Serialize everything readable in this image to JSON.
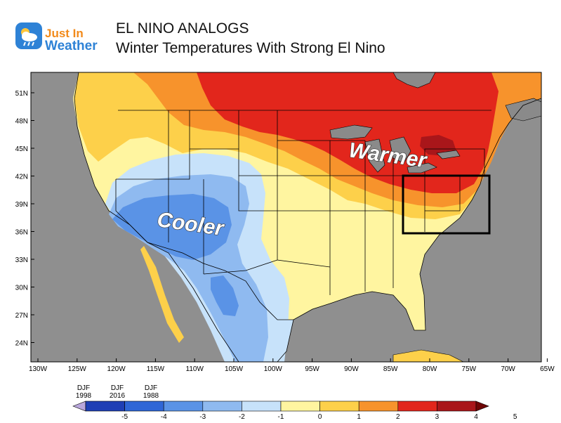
{
  "header": {
    "logo_line1": "Just In",
    "logo_line2": "Weather",
    "title": "EL NINO ANALOGS",
    "subtitle": "Winter Temperatures With Strong El Nino"
  },
  "map": {
    "lat_labels": [
      "51N",
      "48N",
      "45N",
      "42N",
      "39N",
      "36N",
      "33N",
      "30N",
      "27N",
      "24N"
    ],
    "lon_labels": [
      "130W",
      "125W",
      "120W",
      "115W",
      "110W",
      "105W",
      "100W",
      "95W",
      "90W",
      "85W",
      "80W",
      "75W",
      "70W",
      "65W"
    ],
    "annotation_warm": "Warmer",
    "annotation_cool": "Cooler",
    "land_color": "#8f8f8f",
    "water_color": "#8a8a8a"
  },
  "legend": {
    "analog_years": [
      {
        "season": "DJF",
        "year": "1998"
      },
      {
        "season": "DJF",
        "year": "2016"
      },
      {
        "season": "DJF",
        "year": "1988"
      }
    ],
    "tick_labels": [
      "-5",
      "-4",
      "-3",
      "-2",
      "-1",
      "0",
      "1",
      "2",
      "3",
      "4",
      "5"
    ],
    "colors": [
      "#b9a7dc",
      "#1f3fb5",
      "#2f66d6",
      "#5a93e6",
      "#8fbaf0",
      "#c7e2fa",
      "#fff5a0",
      "#fdd04a",
      "#f7932c",
      "#e2261c",
      "#a9161a",
      "#6e0606"
    ]
  }
}
